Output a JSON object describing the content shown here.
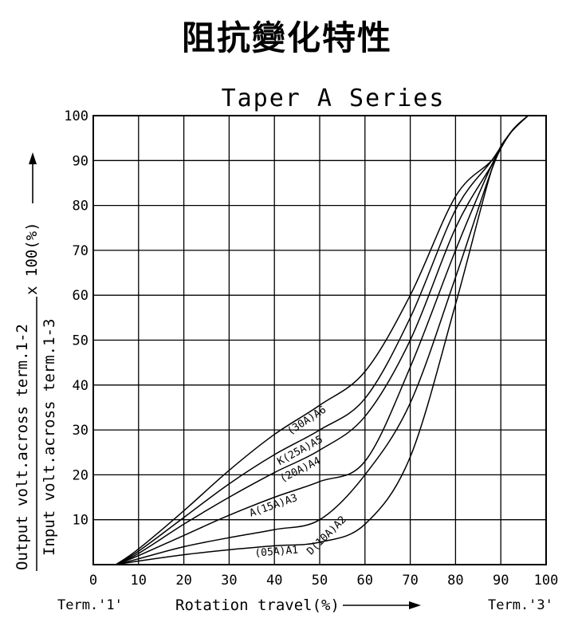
{
  "page": {
    "heading": "阻抗變化特性"
  },
  "chart_data": {
    "type": "line",
    "title": "Taper A Series",
    "xlabel": "Rotation travel(%)",
    "ylabel_numerator": "Output volt.across term.1-2",
    "ylabel_denominator": "Input volt.across term.1-3",
    "ylabel_multiplier": "x 100(%)",
    "term_left": "Term.'1'",
    "term_right": "Term.'3'",
    "xlim": [
      0,
      100
    ],
    "ylim": [
      0,
      100
    ],
    "x_ticks": [
      0,
      10,
      20,
      30,
      40,
      50,
      60,
      70,
      80,
      90,
      100
    ],
    "y_ticks": [
      10,
      20,
      30,
      40,
      50,
      60,
      70,
      80,
      90,
      100
    ],
    "grid": true,
    "series": [
      {
        "name": "(05A)A1",
        "label_at": [
          40.5,
          2.2
        ],
        "points": [
          [
            5,
            0
          ],
          [
            10,
            0.8
          ],
          [
            20,
            2.2
          ],
          [
            30,
            3.3
          ],
          [
            40,
            4.2
          ],
          [
            50,
            5
          ],
          [
            60,
            9
          ],
          [
            70,
            24
          ],
          [
            80,
            58
          ],
          [
            88,
            88
          ],
          [
            92,
            96
          ],
          [
            96,
            100
          ]
        ]
      },
      {
        "name": "D(10A)A2",
        "label_at": [
          52,
          6
        ],
        "points": [
          [
            5,
            0
          ],
          [
            10,
            1.3
          ],
          [
            20,
            4
          ],
          [
            30,
            6
          ],
          [
            40,
            7.8
          ],
          [
            50,
            10
          ],
          [
            60,
            20
          ],
          [
            70,
            36
          ],
          [
            80,
            64
          ],
          [
            88,
            88
          ],
          [
            92,
            96
          ],
          [
            96,
            100
          ]
        ]
      },
      {
        "name": "A(15A)A3",
        "label_at": [
          40,
          12.5
        ],
        "points": [
          [
            5,
            0
          ],
          [
            10,
            2
          ],
          [
            20,
            6.5
          ],
          [
            30,
            11
          ],
          [
            40,
            15
          ],
          [
            50,
            18.5
          ],
          [
            60,
            23
          ],
          [
            70,
            44
          ],
          [
            80,
            70
          ],
          [
            88,
            89
          ],
          [
            92,
            96
          ],
          [
            96,
            100
          ]
        ]
      },
      {
        "name": "(20A)A4",
        "label_at": [
          46,
          20.5
        ],
        "points": [
          [
            5,
            0
          ],
          [
            10,
            2.5
          ],
          [
            20,
            9
          ],
          [
            30,
            15
          ],
          [
            40,
            20.5
          ],
          [
            50,
            25.5
          ],
          [
            60,
            33
          ],
          [
            70,
            50
          ],
          [
            80,
            75
          ],
          [
            88,
            89
          ],
          [
            92,
            96
          ],
          [
            96,
            100
          ]
        ]
      },
      {
        "name": "K(25A)A5",
        "label_at": [
          46,
          24.8
        ],
        "points": [
          [
            5,
            0
          ],
          [
            10,
            3
          ],
          [
            20,
            10.5
          ],
          [
            30,
            18
          ],
          [
            40,
            24.5
          ],
          [
            50,
            30
          ],
          [
            60,
            37
          ],
          [
            70,
            55
          ],
          [
            80,
            79
          ],
          [
            88,
            90
          ],
          [
            92,
            96
          ],
          [
            96,
            100
          ]
        ]
      },
      {
        "name": "(30A)A6",
        "label_at": [
          47.5,
          31.5
        ],
        "points": [
          [
            5,
            0
          ],
          [
            10,
            3.5
          ],
          [
            20,
            12
          ],
          [
            30,
            21
          ],
          [
            40,
            29
          ],
          [
            50,
            35.5
          ],
          [
            60,
            43
          ],
          [
            70,
            60
          ],
          [
            80,
            82
          ],
          [
            88,
            90
          ],
          [
            92,
            96
          ],
          [
            96,
            100
          ]
        ]
      }
    ]
  }
}
